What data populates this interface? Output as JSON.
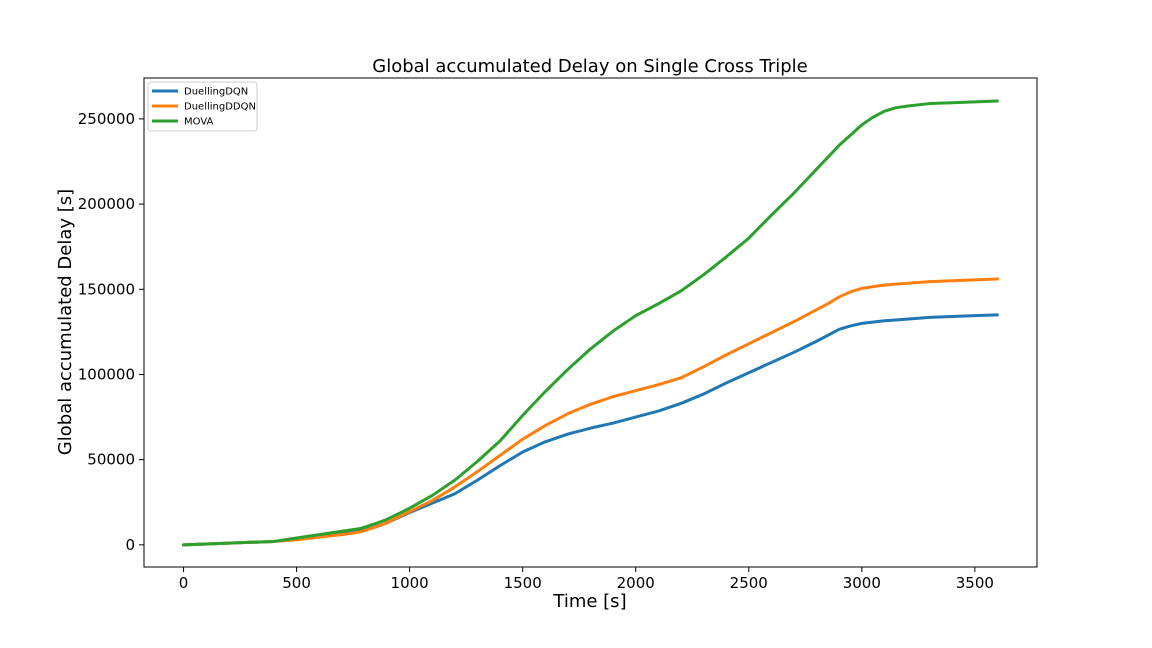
{
  "chart_data": {
    "type": "line",
    "title": "Global accumulated Delay on Single Cross Triple",
    "xlabel": "Time [s]",
    "ylabel": "Global accumulated Delay [s]",
    "xlim": [
      -175,
      3775
    ],
    "ylim": [
      -13000,
      274000
    ],
    "xticks": [
      0,
      500,
      1000,
      1500,
      2000,
      2500,
      3000,
      3500
    ],
    "yticks": [
      0,
      50000,
      100000,
      150000,
      200000,
      250000
    ],
    "grid": false,
    "legend_position": "top-left",
    "series": [
      {
        "name": "DuellingDQN",
        "color": "#1f77b4",
        "x": [
          0,
          100,
          200,
          300,
          400,
          500,
          600,
          700,
          780,
          850,
          900,
          1000,
          1100,
          1200,
          1300,
          1400,
          1500,
          1600,
          1700,
          1800,
          1900,
          2000,
          2100,
          2200,
          2300,
          2400,
          2500,
          2600,
          2700,
          2800,
          2850,
          2900,
          2950,
          3000,
          3100,
          3200,
          3300,
          3400,
          3500,
          3600
        ],
        "values": [
          0,
          500,
          1000,
          1500,
          2000,
          3500,
          5000,
          6500,
          8000,
          10500,
          13000,
          19000,
          24500,
          30000,
          38000,
          46500,
          54500,
          60500,
          65000,
          68500,
          71500,
          75000,
          78500,
          83000,
          88500,
          95000,
          101000,
          107000,
          113000,
          119500,
          123000,
          126500,
          128500,
          130000,
          131500,
          132500,
          133500,
          134000,
          134500,
          135000
        ]
      },
      {
        "name": "DuellingDDQN",
        "color": "#ff7f0e",
        "x": [
          0,
          100,
          200,
          300,
          400,
          500,
          600,
          700,
          780,
          850,
          900,
          1000,
          1100,
          1200,
          1300,
          1400,
          1500,
          1600,
          1700,
          1800,
          1900,
          2000,
          2100,
          2200,
          2300,
          2400,
          2500,
          2600,
          2700,
          2800,
          2850,
          2900,
          2950,
          3000,
          3100,
          3200,
          3300,
          3400,
          3500,
          3600
        ],
        "values": [
          0,
          500,
          1000,
          1500,
          2000,
          3000,
          4500,
          6000,
          7500,
          10500,
          13000,
          19500,
          26000,
          34000,
          43000,
          52500,
          62000,
          70000,
          77000,
          82500,
          87000,
          90500,
          94000,
          98000,
          104500,
          111500,
          118000,
          124500,
          131000,
          138000,
          141500,
          145500,
          148500,
          150500,
          152500,
          153500,
          154500,
          155000,
          155500,
          156000
        ]
      },
      {
        "name": "MOVA",
        "color": "#2ca02c",
        "x": [
          0,
          100,
          200,
          300,
          400,
          500,
          600,
          700,
          780,
          850,
          900,
          1000,
          1100,
          1200,
          1300,
          1400,
          1500,
          1600,
          1700,
          1800,
          1900,
          2000,
          2100,
          2200,
          2300,
          2400,
          2500,
          2600,
          2700,
          2800,
          2900,
          2950,
          3000,
          3050,
          3100,
          3150,
          3200,
          3300,
          3400,
          3500,
          3600
        ],
        "values": [
          0,
          500,
          1000,
          1500,
          2000,
          4000,
          6000,
          8000,
          9500,
          12500,
          15000,
          21500,
          29000,
          38000,
          49000,
          61000,
          76000,
          90000,
          103000,
          115000,
          125500,
          134500,
          141500,
          149000,
          158500,
          169000,
          180000,
          193500,
          206500,
          220500,
          234500,
          240500,
          246500,
          251000,
          254500,
          256500,
          257500,
          259000,
          259500,
          260000,
          260500
        ]
      }
    ]
  }
}
